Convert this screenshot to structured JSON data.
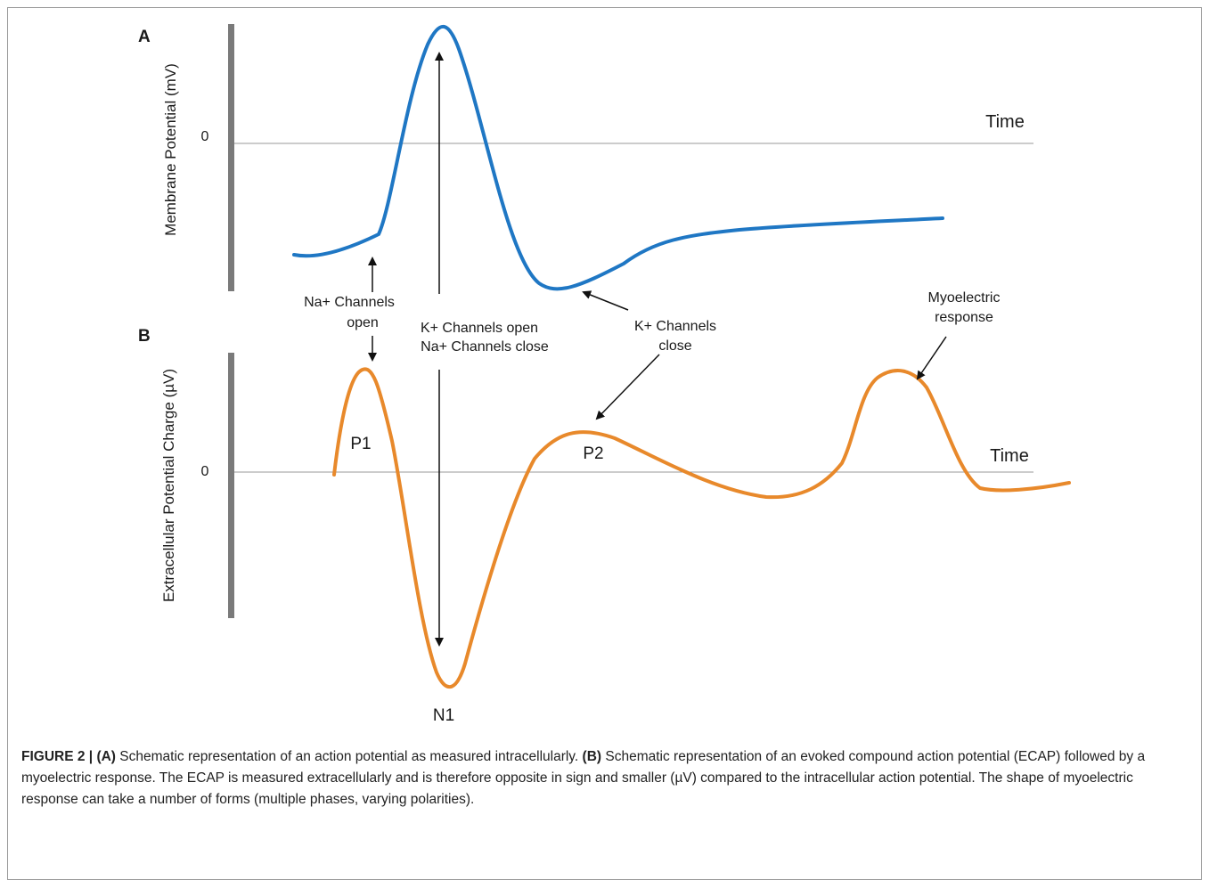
{
  "panel_a": {
    "letter": "A",
    "ylabel": "Membrane Potential (mV)",
    "zero_label": "0",
    "time_label": "Time",
    "curve_color": "#1f77c4",
    "annotations": {
      "na_open_line1": "Na+ Channels",
      "na_open_line2": "open",
      "k_open_line1": "K+ Channels open",
      "k_open_line2": "Na+ Channels close",
      "k_close_line1": "K+ Channels",
      "k_close_line2": "close"
    }
  },
  "panel_b": {
    "letter": "B",
    "ylabel": "Extracellular Potential Charge (µV)",
    "zero_label": "0",
    "time_label": "Time",
    "curve_color": "#e8892b",
    "peak_labels": {
      "p1": "P1",
      "p2": "P2",
      "n1": "N1"
    },
    "annotations": {
      "myo_line1": "Myoelectric",
      "myo_line2": "response"
    }
  },
  "caption": {
    "figure_label": "FIGURE 2 | ",
    "part_a": "(A)",
    "text_a": " Schematic representation of an action potential as measured intracellularly. ",
    "part_b": "(B)",
    "text_b": " Schematic representation of an evoked compound action potential (ECAP) followed by a myoelectric response. The ECAP is measured extracellularly and is therefore opposite in sign and smaller (µV) compared to the intracellular action potential. The shape of myoelectric response can take a number of forms (multiple phases, varying polarities)."
  }
}
